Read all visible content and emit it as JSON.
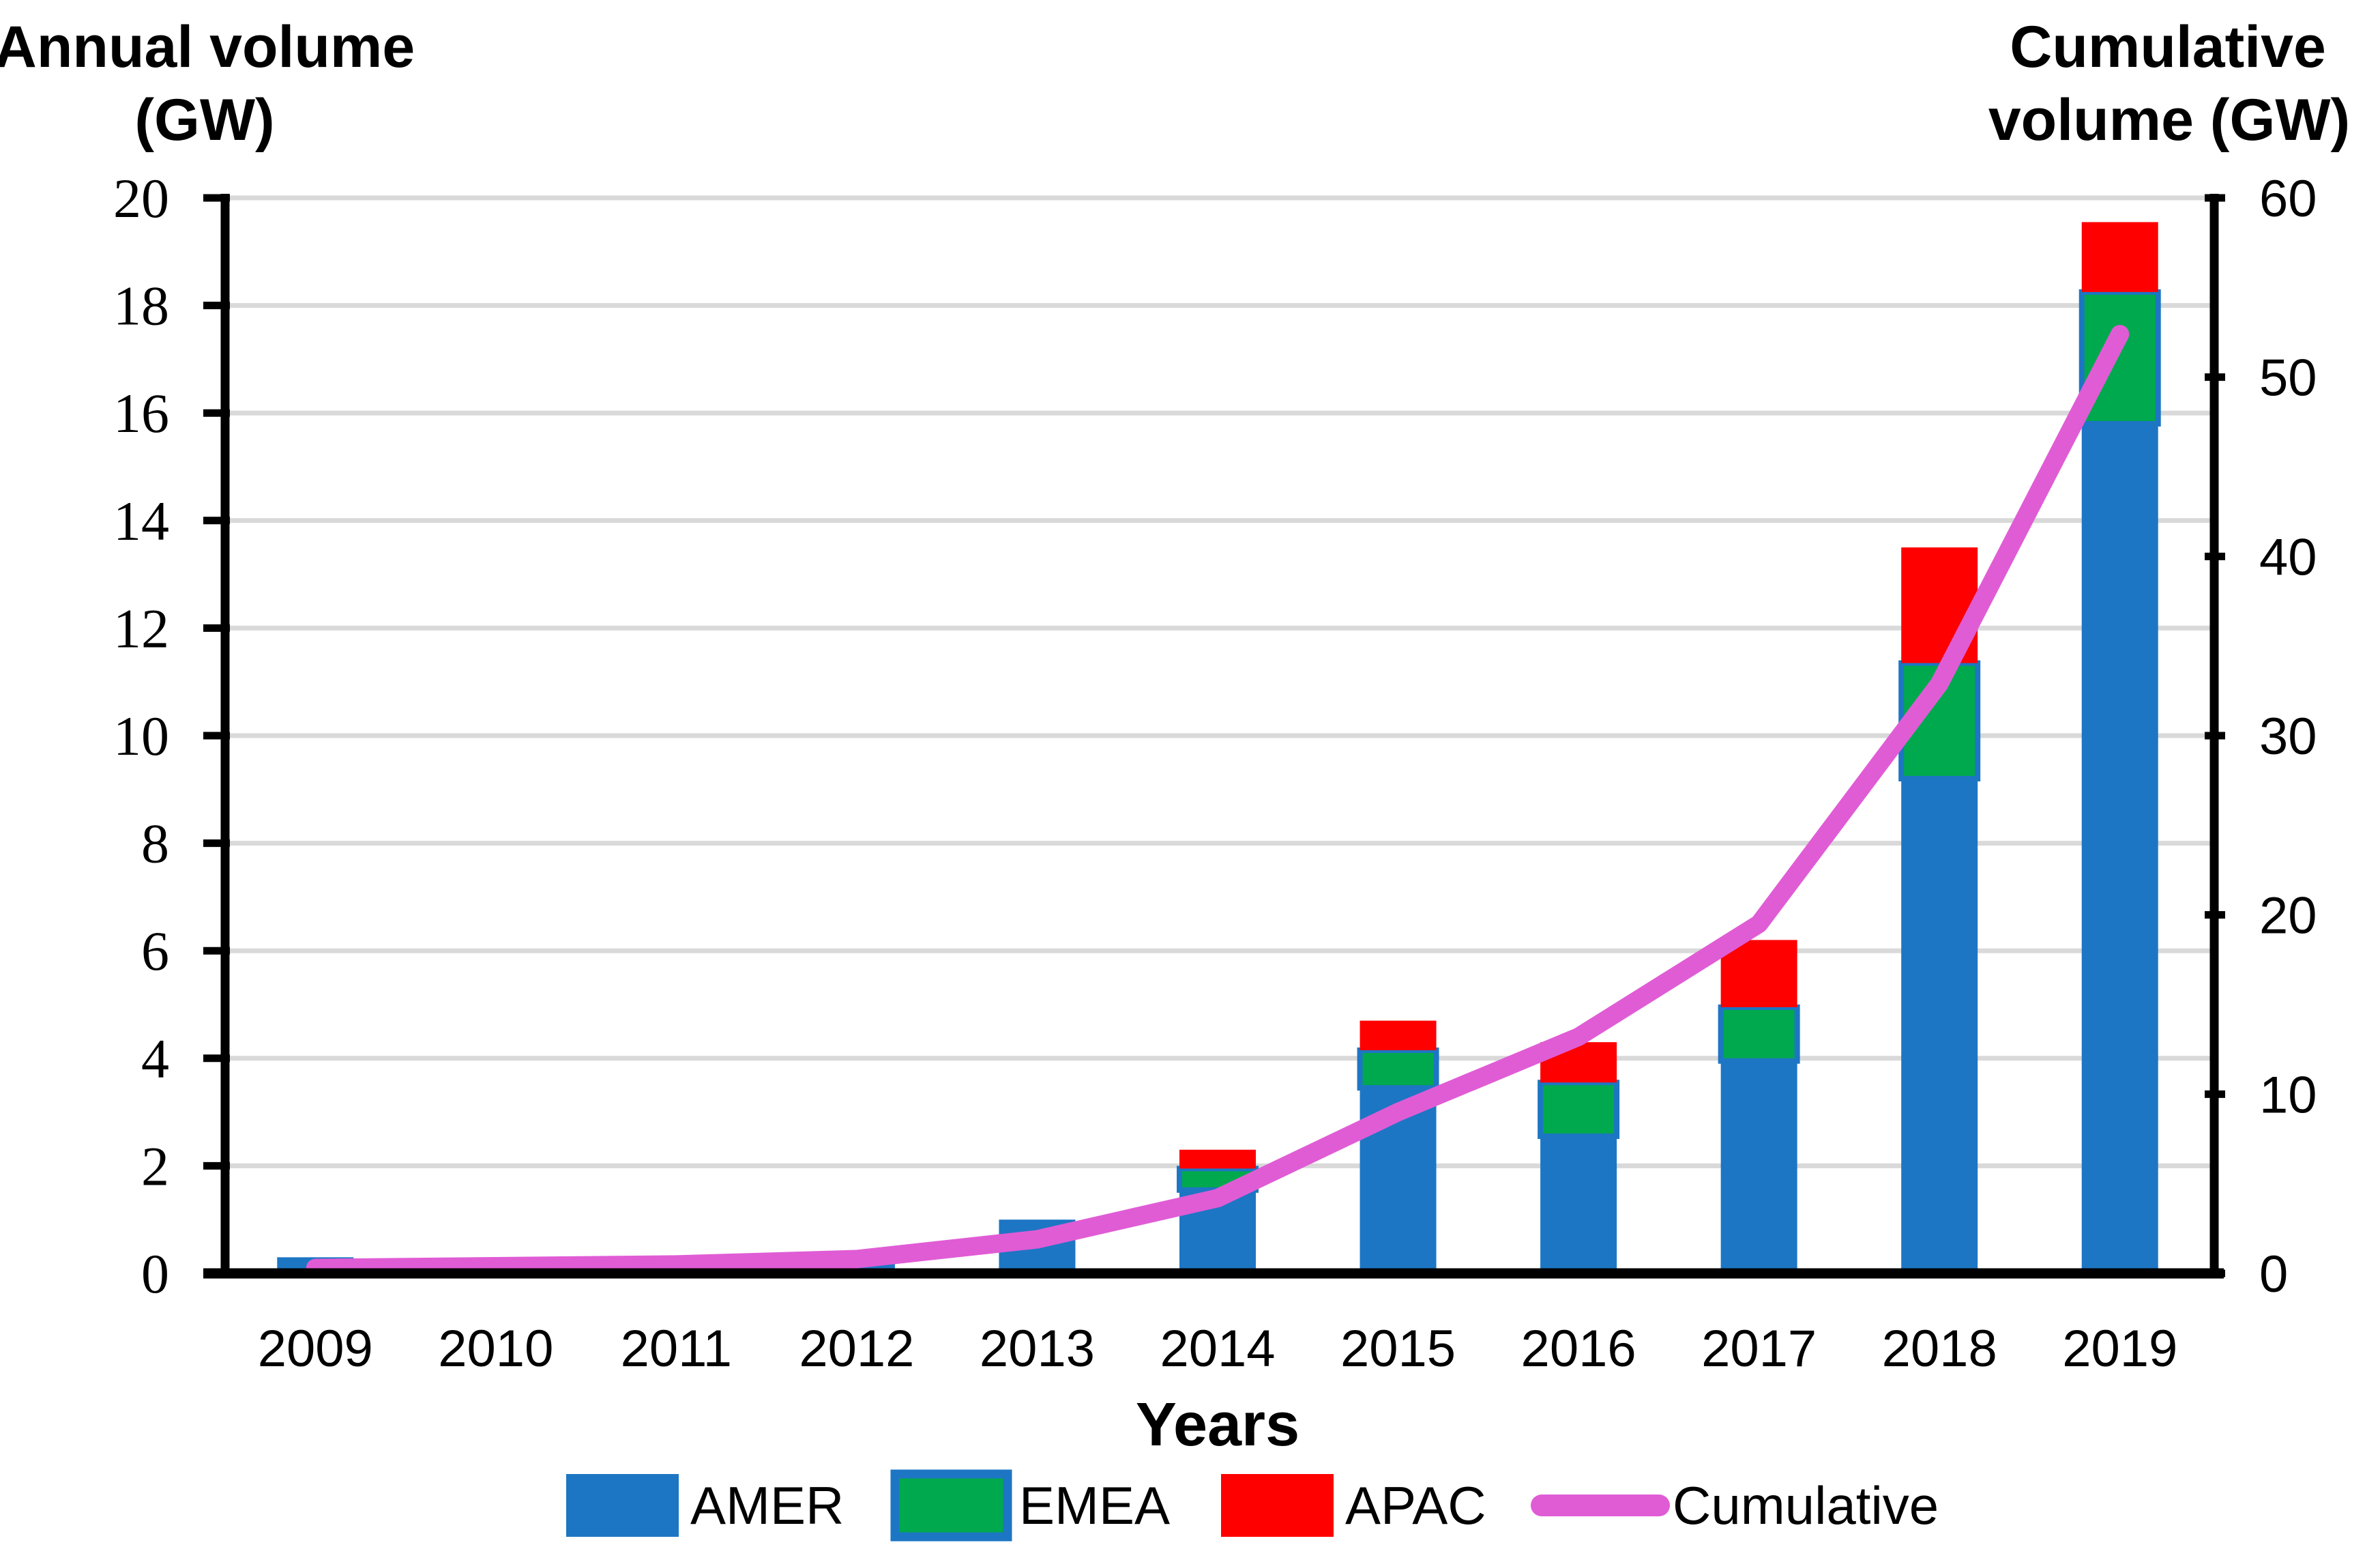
{
  "chart_data": {
    "type": "bar",
    "subtype": "stacked-columns-with-cumulative-line",
    "categories": [
      "2009",
      "2010",
      "2011",
      "2012",
      "2013",
      "2014",
      "2015",
      "2016",
      "2017",
      "2018",
      "2019"
    ],
    "series": [
      {
        "name": "AMER",
        "type": "bar",
        "color": "#1d76c4",
        "values": [
          0.3,
          0.05,
          0.1,
          0.25,
          1.0,
          1.55,
          3.45,
          2.55,
          3.95,
          9.2,
          15.8
        ]
      },
      {
        "name": "EMEA",
        "type": "bar",
        "color": "#00a94e",
        "values": [
          0,
          0,
          0,
          0,
          0,
          0.4,
          0.7,
          1.0,
          1.0,
          2.15,
          2.45
        ]
      },
      {
        "name": "APAC",
        "type": "bar",
        "color": "#fe0000",
        "values": [
          0,
          0,
          0,
          0,
          0,
          0.35,
          0.55,
          0.75,
          1.25,
          2.15,
          1.3
        ]
      },
      {
        "name": "Cumulative",
        "type": "line",
        "axis": "right",
        "color": "#e05cd5",
        "values": [
          0.3,
          0.4,
          0.5,
          0.8,
          1.9,
          4.2,
          9.0,
          13.2,
          19.5,
          32.9,
          52.4
        ]
      }
    ],
    "left_axis": {
      "title_line1": "Annual volume",
      "title_line2": "(GW)",
      "min": 0,
      "max": 20,
      "step": 2,
      "tick_labels": [
        "0",
        "2",
        "4",
        "6",
        "8",
        "10",
        "12",
        "14",
        "16",
        "18",
        "20"
      ]
    },
    "right_axis": {
      "title_line1": "Cumulative",
      "title_line2": "volume (GW)",
      "min": 0,
      "max": 60,
      "step": 10,
      "tick_labels": [
        "0",
        "10",
        "20",
        "30",
        "40",
        "50",
        "60"
      ]
    },
    "x_axis": {
      "title": "Years"
    },
    "legend": [
      {
        "label": "AMER",
        "swatch": "bar-swatch",
        "color": "#1d76c4"
      },
      {
        "label": "EMEA",
        "swatch": "bar-swatch",
        "color": "#00a94e"
      },
      {
        "label": "APAC",
        "swatch": "bar-swatch",
        "color": "#fe0000"
      },
      {
        "label": "Cumulative",
        "swatch": "line-swatch",
        "color": "#e05cd5"
      }
    ],
    "grid": true,
    "gridline_color": "#d9d9d9",
    "axis_color": "#000000",
    "legend_position": "bottom"
  }
}
